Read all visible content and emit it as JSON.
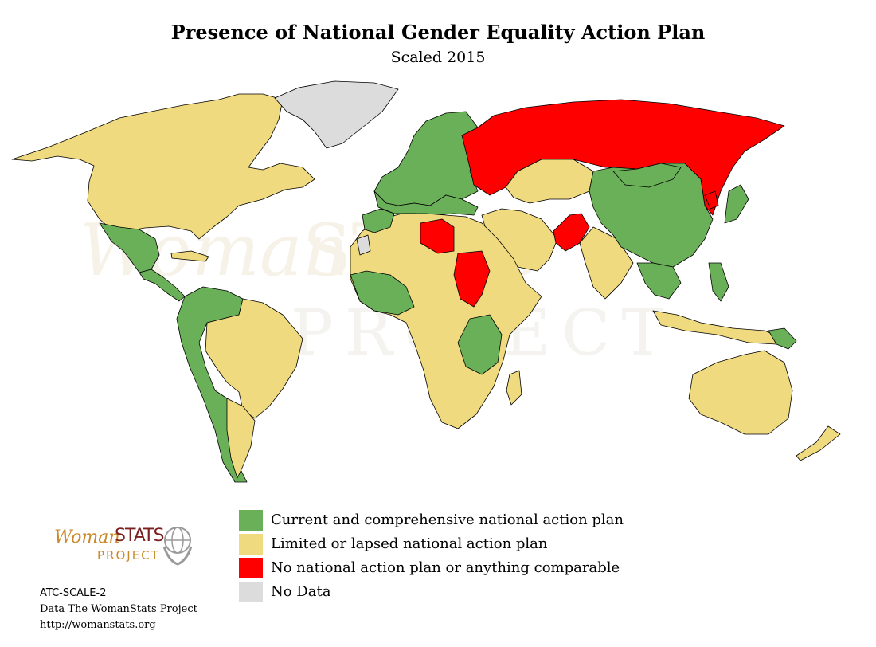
{
  "title": "Presence of National Gender Equality Action Plan",
  "subtitle": "Scaled 2015",
  "colors": {
    "current": "#6ab058",
    "limited": "#f0da7f",
    "none": "#ff0000",
    "nodata": "#dcdcdc",
    "border": "#000000"
  },
  "watermark": {
    "woman": "Woman",
    "stats": "STATS",
    "project": "PROJECT"
  },
  "legend": [
    {
      "label": "Current and comprehensive national action plan",
      "color": "#6ab058"
    },
    {
      "label": "Limited or lapsed national action plan",
      "color": "#f0da7f"
    },
    {
      "label": "No national action plan or anything comparable",
      "color": "#ff0000"
    },
    {
      "label": "No Data",
      "color": "#dcdcdc"
    }
  ],
  "logo": {
    "woman": "Woman",
    "stats": "STATS",
    "project": "PROJECT"
  },
  "footer": {
    "code": "ATC-SCALE-2",
    "source": "Data The WomanStats Project",
    "url": "http://womanstats.org"
  }
}
